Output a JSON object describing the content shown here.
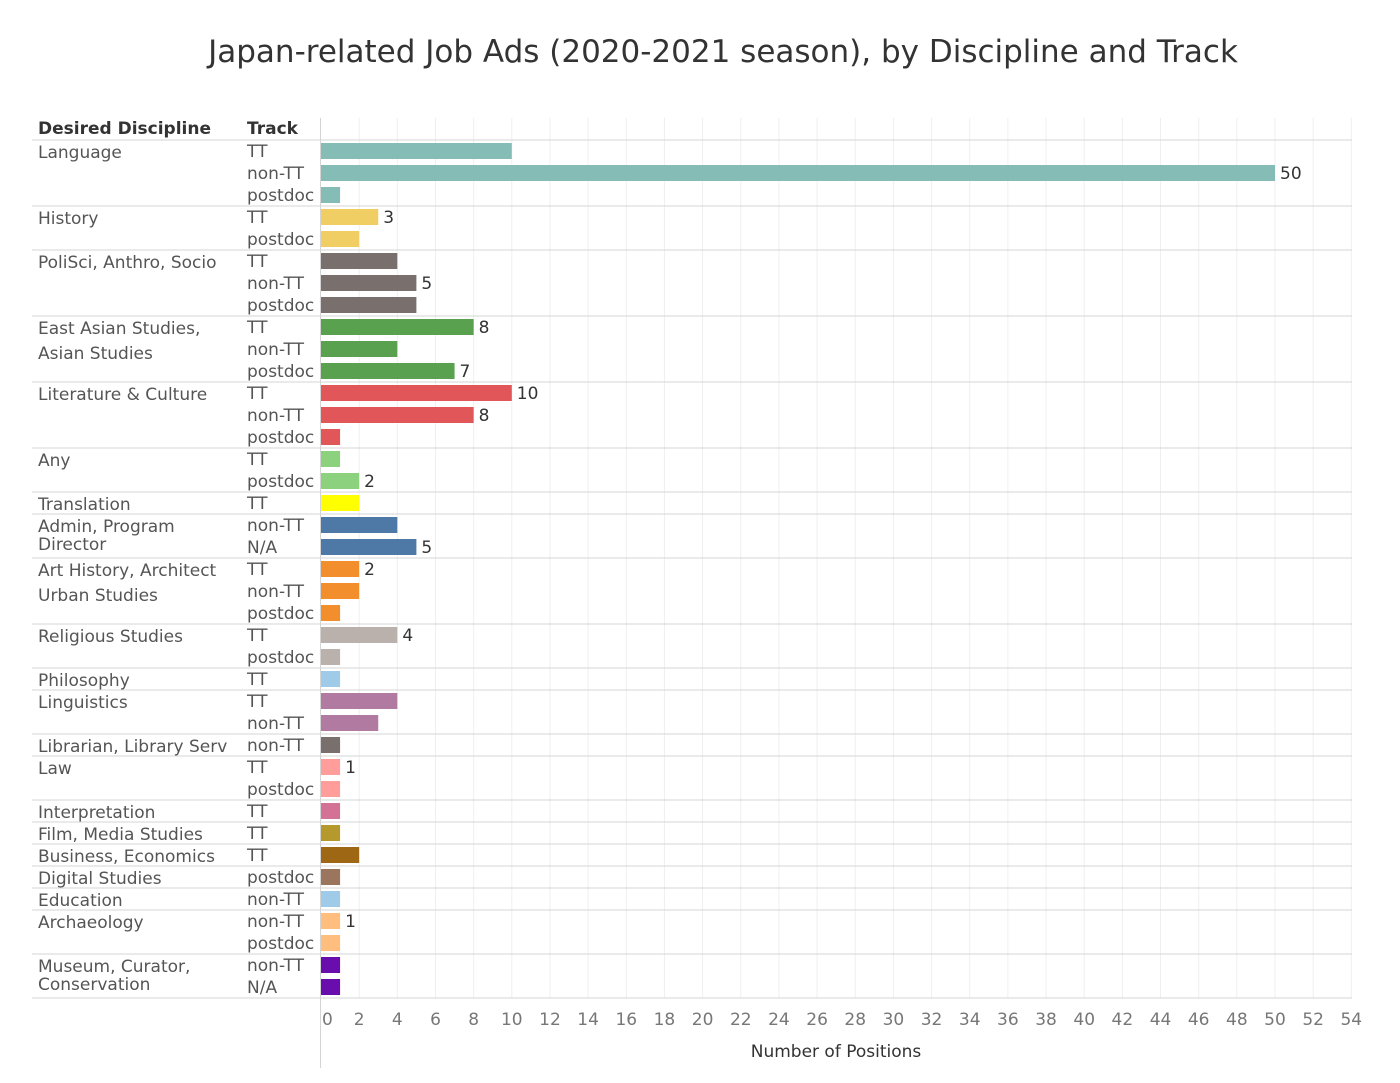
{
  "chart_data": {
    "type": "bar",
    "orientation": "horizontal",
    "title": "Japan-related Job Ads (2020-2021 season), by Discipline and Track",
    "headers": {
      "discipline": "Desired Discipline",
      "track": "Track"
    },
    "xlabel": "Number of Positions",
    "xlim": [
      0,
      54
    ],
    "x_ticks": [
      0,
      2,
      4,
      6,
      8,
      10,
      12,
      14,
      16,
      18,
      20,
      22,
      24,
      26,
      28,
      30,
      32,
      34,
      36,
      38,
      40,
      42,
      44,
      46,
      48,
      50,
      52,
      54
    ],
    "grid": true,
    "groups": [
      {
        "discipline": [
          "Language"
        ],
        "color": "#86bcb6",
        "bars": [
          {
            "track": "TT",
            "value": 10,
            "label": ""
          },
          {
            "track": "non-TT",
            "value": 50,
            "label": "50"
          },
          {
            "track": "postdoc",
            "value": 1,
            "label": ""
          }
        ]
      },
      {
        "discipline": [
          "History"
        ],
        "color": "#f1ce63",
        "bars": [
          {
            "track": "TT",
            "value": 3,
            "label": "3"
          },
          {
            "track": "postdoc",
            "value": 2,
            "label": ""
          }
        ]
      },
      {
        "discipline": [
          "PoliSci, Anthro, Socio"
        ],
        "color": "#79706e",
        "bars": [
          {
            "track": "TT",
            "value": 4,
            "label": ""
          },
          {
            "track": "non-TT",
            "value": 5,
            "label": "5"
          },
          {
            "track": "postdoc",
            "value": 5,
            "label": ""
          }
        ]
      },
      {
        "discipline": [
          "East Asian Studies,",
          "Asian Studies"
        ],
        "color": "#59a14f",
        "bars": [
          {
            "track": "TT",
            "value": 8,
            "label": "8"
          },
          {
            "track": "non-TT",
            "value": 4,
            "label": ""
          },
          {
            "track": "postdoc",
            "value": 7,
            "label": "7"
          }
        ]
      },
      {
        "discipline": [
          "Literature & Culture"
        ],
        "color": "#e15759",
        "bars": [
          {
            "track": "TT",
            "value": 10,
            "label": "10"
          },
          {
            "track": "non-TT",
            "value": 8,
            "label": "8"
          },
          {
            "track": "postdoc",
            "value": 1,
            "label": ""
          }
        ]
      },
      {
        "discipline": [
          "Any"
        ],
        "color": "#8cd17d",
        "bars": [
          {
            "track": "TT",
            "value": 1,
            "label": ""
          },
          {
            "track": "postdoc",
            "value": 2,
            "label": "2"
          }
        ]
      },
      {
        "discipline": [
          "Translation"
        ],
        "color": "#ffff00",
        "bars": [
          {
            "track": "TT",
            "value": 2,
            "label": ""
          }
        ]
      },
      {
        "discipline": [
          "Admin, Program",
          "Director"
        ],
        "color": "#4e79a7",
        "bars": [
          {
            "track": "non-TT",
            "value": 4,
            "label": ""
          },
          {
            "track": "N/A",
            "value": 5,
            "label": "5"
          }
        ]
      },
      {
        "discipline": [
          "Art History, Architect",
          "Urban Studies"
        ],
        "color": "#f28e2b",
        "bars": [
          {
            "track": "TT",
            "value": 2,
            "label": "2"
          },
          {
            "track": "non-TT",
            "value": 2,
            "label": ""
          },
          {
            "track": "postdoc",
            "value": 1,
            "label": ""
          }
        ]
      },
      {
        "discipline": [
          "Religious Studies"
        ],
        "color": "#bab0ac",
        "bars": [
          {
            "track": "TT",
            "value": 4,
            "label": "4"
          },
          {
            "track": "postdoc",
            "value": 1,
            "label": ""
          }
        ]
      },
      {
        "discipline": [
          "Philosophy"
        ],
        "color": "#a0cbe8",
        "bars": [
          {
            "track": "TT",
            "value": 1,
            "label": ""
          }
        ]
      },
      {
        "discipline": [
          "Linguistics"
        ],
        "color": "#b07aa1",
        "bars": [
          {
            "track": "TT",
            "value": 4,
            "label": ""
          },
          {
            "track": "non-TT",
            "value": 3,
            "label": ""
          }
        ]
      },
      {
        "discipline": [
          "Librarian, Library Serv"
        ],
        "color": "#79706e",
        "bars": [
          {
            "track": "non-TT",
            "value": 1,
            "label": ""
          }
        ]
      },
      {
        "discipline": [
          "Law"
        ],
        "color": "#ff9d9a",
        "bars": [
          {
            "track": "TT",
            "value": 1,
            "label": "1"
          },
          {
            "track": "postdoc",
            "value": 1,
            "label": ""
          }
        ]
      },
      {
        "discipline": [
          "Interpretation"
        ],
        "color": "#d37295",
        "bars": [
          {
            "track": "TT",
            "value": 1,
            "label": ""
          }
        ]
      },
      {
        "discipline": [
          "Film, Media Studies"
        ],
        "color": "#b6992d",
        "bars": [
          {
            "track": "TT",
            "value": 1,
            "label": ""
          }
        ]
      },
      {
        "discipline": [
          "Business, Economics"
        ],
        "color": "#9d6713",
        "bars": [
          {
            "track": "TT",
            "value": 2,
            "label": ""
          }
        ]
      },
      {
        "discipline": [
          "Digital Studies"
        ],
        "color": "#9c755f",
        "bars": [
          {
            "track": "postdoc",
            "value": 1,
            "label": ""
          }
        ]
      },
      {
        "discipline": [
          "Education"
        ],
        "color": "#a0cbe8",
        "bars": [
          {
            "track": "non-TT",
            "value": 1,
            "label": ""
          }
        ]
      },
      {
        "discipline": [
          "Archaeology"
        ],
        "color": "#ffbe7d",
        "bars": [
          {
            "track": "non-TT",
            "value": 1,
            "label": "1"
          },
          {
            "track": "postdoc",
            "value": 1,
            "label": ""
          }
        ]
      },
      {
        "discipline": [
          "Museum, Curator,",
          "Conservation"
        ],
        "color": "#6a0dad",
        "bars": [
          {
            "track": "non-TT",
            "value": 1,
            "label": ""
          },
          {
            "track": "N/A",
            "value": 1,
            "label": ""
          }
        ]
      }
    ]
  }
}
